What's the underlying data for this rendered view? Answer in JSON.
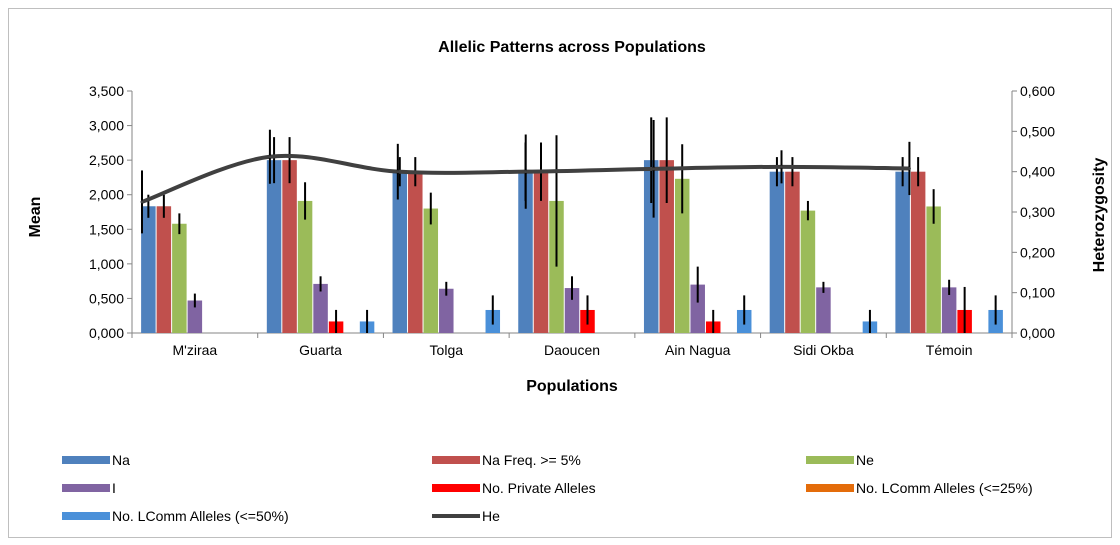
{
  "chart_data": {
    "type": "bar",
    "title": "Allelic Patterns across Populations",
    "xlabel": "Populations",
    "ylabel": "Mean",
    "y2label": "Heterozygosity",
    "ylim": [
      0,
      3.5
    ],
    "y2lim": [
      0,
      0.6
    ],
    "yticks": [
      "0,000",
      "0,500",
      "1,000",
      "1,500",
      "2,000",
      "2,500",
      "3,000",
      "3,500"
    ],
    "y2ticks": [
      "0,000",
      "0,100",
      "0,200",
      "0,300",
      "0,400",
      "0,500",
      "0,600"
    ],
    "grid": false,
    "legend_position": "bottom",
    "categories": [
      "M'ziraa",
      "Guarta",
      "Tolga",
      "Daoucen",
      "Ain Nagua",
      "Sidi Okba",
      "Témoin"
    ],
    "series": [
      {
        "name": "Na",
        "color": "#4f81bd",
        "axis": "left",
        "values": [
          1.833,
          2.5,
          2.333,
          2.333,
          2.5,
          2.333,
          2.333
        ],
        "errors": [
          0.167,
          0.333,
          0.211,
          0.422,
          0.619,
          0.211,
          0.211
        ]
      },
      {
        "name": "Na Freq. >= 5%",
        "color": "#c0504d",
        "axis": "left",
        "values": [
          1.833,
          2.5,
          2.333,
          2.333,
          2.5,
          2.333,
          2.333
        ],
        "errors": [
          0.167,
          0.333,
          0.211,
          0.422,
          0.619,
          0.211,
          0.211
        ]
      },
      {
        "name": "Ne",
        "color": "#9bbb59",
        "axis": "left",
        "values": [
          1.58,
          1.91,
          1.8,
          1.91,
          2.23,
          1.77,
          1.83
        ],
        "errors": [
          0.15,
          0.27,
          0.23,
          0.95,
          0.5,
          0.14,
          0.25
        ]
      },
      {
        "name": "I",
        "color": "#8064a2",
        "axis": "left",
        "values": [
          0.47,
          0.71,
          0.64,
          0.65,
          0.7,
          0.66,
          0.66
        ],
        "errors": [
          0.1,
          0.11,
          0.1,
          0.17,
          0.26,
          0.08,
          0.11
        ]
      },
      {
        "name": "No. Private Alleles",
        "color": "#ff0000",
        "axis": "left",
        "values": [
          0,
          0.167,
          0,
          0.333,
          0.167,
          0,
          0.333
        ],
        "errors": [
          0,
          0.167,
          0,
          0.211,
          0.167,
          0,
          0.333
        ]
      },
      {
        "name": "No. LComm Alleles (<=25%)",
        "color": "#e46c0a",
        "axis": "left",
        "values": [
          0,
          0,
          0,
          0,
          0,
          0,
          0
        ],
        "errors": [
          0,
          0,
          0,
          0,
          0,
          0,
          0
        ]
      },
      {
        "name": "No. LComm Alleles (<=50%)",
        "color": "#4a90d9",
        "axis": "left",
        "values": [
          0,
          0.167,
          0.333,
          0,
          0.333,
          0.167,
          0.333
        ],
        "errors": [
          0,
          0.167,
          0.211,
          0,
          0.211,
          0.167,
          0.211
        ]
      },
      {
        "name": "He",
        "color": "#404040",
        "axis": "right",
        "type": "line",
        "values": [
          0.325,
          0.437,
          0.4,
          0.4,
          0.407,
          0.412,
          0.408
        ],
        "errors": [
          0.078,
          0.067,
          0.069,
          0.092,
          0.121,
          0.041,
          0.066
        ]
      }
    ]
  }
}
